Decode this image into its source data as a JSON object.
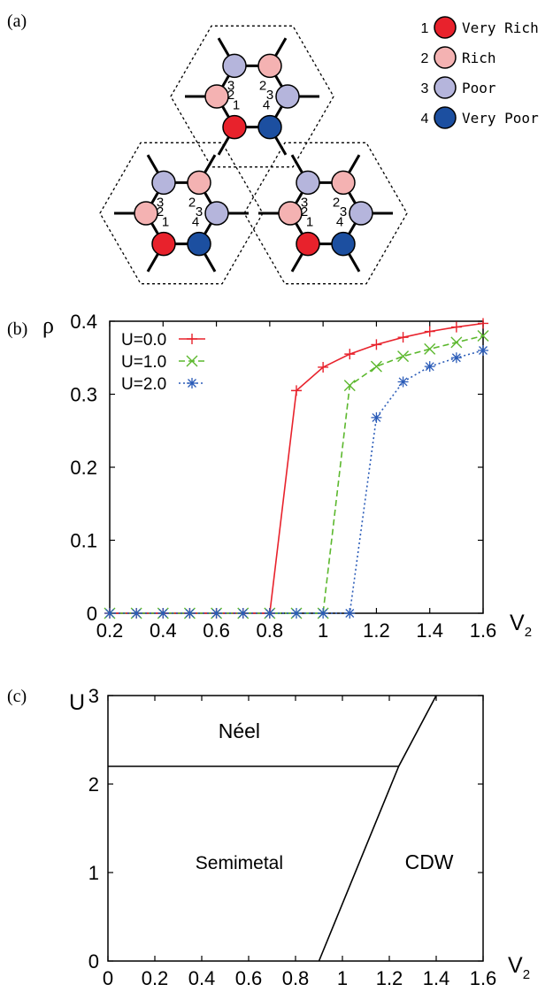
{
  "panel_labels": {
    "a": "(a)",
    "b": "(b)",
    "c": "(c)"
  },
  "lattice": {
    "site_numbers": [
      "1",
      "2",
      "3",
      "4"
    ],
    "legend": [
      {
        "number": "1",
        "label": "Very Rich",
        "color": "#e8222c"
      },
      {
        "number": "2",
        "label": "Rich",
        "color": "#f4b2b2"
      },
      {
        "number": "3",
        "label": "Poor",
        "color": "#b5b5dc"
      },
      {
        "number": "4",
        "label": "Very Poor",
        "color": "#1c4fa0"
      }
    ]
  },
  "chart_data": [
    {
      "type": "line",
      "panel": "(b)",
      "ylabel": "ρ",
      "xlabel": "V",
      "xlabel_sub": "2",
      "xlim": [
        0.2,
        1.6
      ],
      "ylim": [
        0,
        0.4
      ],
      "xticks": [
        "0.2",
        "0.4",
        "0.6",
        "0.8",
        "1",
        "1.2",
        "1.4",
        "1.6"
      ],
      "yticks": [
        "0",
        "0.1",
        "0.2",
        "0.3",
        "0.4"
      ],
      "legend_position": "top-left",
      "series": [
        {
          "name": "U=0.0",
          "color": "#e8222c",
          "marker": "+",
          "dash": "",
          "x": [
            0.2,
            0.3,
            0.4,
            0.5,
            0.6,
            0.7,
            0.8,
            0.9,
            1.0,
            1.1,
            1.2,
            1.3,
            1.4,
            1.5,
            1.6
          ],
          "y": [
            0,
            0,
            0,
            0,
            0,
            0,
            0,
            0.305,
            0.337,
            0.355,
            0.368,
            0.378,
            0.386,
            0.392,
            0.397
          ]
        },
        {
          "name": "U=1.0",
          "color": "#5cb82e",
          "marker": "x",
          "dash": "7,4",
          "x": [
            0.2,
            0.3,
            0.4,
            0.5,
            0.6,
            0.7,
            0.8,
            0.9,
            1.0,
            1.1,
            1.2,
            1.3,
            1.4,
            1.5,
            1.6
          ],
          "y": [
            0,
            0,
            0,
            0,
            0,
            0,
            0,
            0,
            0,
            0.312,
            0.338,
            0.352,
            0.362,
            0.371,
            0.38
          ]
        },
        {
          "name": "U=2.0",
          "color": "#2b5cb8",
          "marker": "*",
          "dash": "2,3",
          "x": [
            0.2,
            0.3,
            0.4,
            0.5,
            0.6,
            0.7,
            0.8,
            0.9,
            1.0,
            1.1,
            1.2,
            1.3,
            1.4,
            1.5,
            1.6
          ],
          "y": [
            0,
            0,
            0,
            0,
            0,
            0,
            0,
            0,
            0,
            0,
            0.268,
            0.317,
            0.338,
            0.35,
            0.36
          ]
        }
      ]
    },
    {
      "type": "phase_diagram",
      "panel": "(c)",
      "ylabel": "U",
      "xlabel": "V",
      "xlabel_sub": "2",
      "xlim": [
        0,
        1.6
      ],
      "ylim": [
        0,
        3
      ],
      "xticks": [
        "0",
        "0.2",
        "0.4",
        "0.6",
        "0.8",
        "1",
        "1.2",
        "1.4",
        "1.6"
      ],
      "yticks": [
        "0",
        "1",
        "2",
        "3"
      ],
      "boundaries": [
        {
          "x": [
            0,
            1.24
          ],
          "y": [
            2.2,
            2.2
          ]
        },
        {
          "x": [
            0.9,
            1.24
          ],
          "y": [
            0,
            2.2
          ]
        },
        {
          "x": [
            1.24,
            1.4
          ],
          "y": [
            2.2,
            3
          ]
        }
      ],
      "regions": [
        {
          "label": "Néel",
          "x": 0.56,
          "y": 2.6
        },
        {
          "label": "Semimetal",
          "x": 0.56,
          "y": 1.12
        },
        {
          "label": "CDW",
          "x": 1.37,
          "y": 1.12
        }
      ]
    }
  ]
}
